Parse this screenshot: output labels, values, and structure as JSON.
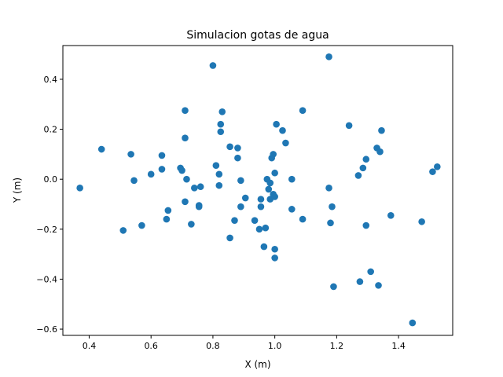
{
  "chart_data": {
    "type": "scatter",
    "title": "Simulacion gotas de agua",
    "xlabel": "X (m)",
    "ylabel": "Y (m)",
    "xlim": [
      0.315,
      1.575
    ],
    "ylim": [
      -0.625,
      0.535
    ],
    "xticks": [
      0.4,
      0.6,
      0.8,
      1.0,
      1.2,
      1.4
    ],
    "xtick_labels": [
      "0.4",
      "0.6",
      "0.8",
      "1.0",
      "1.2",
      "1.4"
    ],
    "yticks": [
      -0.6,
      -0.4,
      -0.2,
      0.0,
      0.2,
      0.4
    ],
    "ytick_labels": [
      "−0.6",
      "−0.4",
      "−0.2",
      "0.0",
      "0.2",
      "0.4"
    ],
    "grid": false,
    "marker_color": "#1f77b4",
    "points": [
      {
        "x": 0.37,
        "y": -0.035
      },
      {
        "x": 0.44,
        "y": 0.12
      },
      {
        "x": 0.51,
        "y": -0.205
      },
      {
        "x": 0.535,
        "y": 0.1
      },
      {
        "x": 0.545,
        "y": -0.005
      },
      {
        "x": 0.57,
        "y": -0.185
      },
      {
        "x": 0.6,
        "y": 0.02
      },
      {
        "x": 0.635,
        "y": 0.095
      },
      {
        "x": 0.635,
        "y": 0.04
      },
      {
        "x": 0.65,
        "y": -0.16
      },
      {
        "x": 0.655,
        "y": -0.125
      },
      {
        "x": 0.695,
        "y": 0.045
      },
      {
        "x": 0.7,
        "y": 0.035
      },
      {
        "x": 0.71,
        "y": 0.275
      },
      {
        "x": 0.71,
        "y": 0.165
      },
      {
        "x": 0.71,
        "y": -0.09
      },
      {
        "x": 0.715,
        "y": 0.0
      },
      {
        "x": 0.73,
        "y": -0.18
      },
      {
        "x": 0.74,
        "y": -0.035
      },
      {
        "x": 0.755,
        "y": -0.105
      },
      {
        "x": 0.755,
        "y": -0.11
      },
      {
        "x": 0.76,
        "y": -0.03
      },
      {
        "x": 0.8,
        "y": 0.455
      },
      {
        "x": 0.81,
        "y": 0.055
      },
      {
        "x": 0.82,
        "y": 0.02
      },
      {
        "x": 0.82,
        "y": -0.025
      },
      {
        "x": 0.825,
        "y": 0.22
      },
      {
        "x": 0.825,
        "y": 0.19
      },
      {
        "x": 0.83,
        "y": 0.27
      },
      {
        "x": 0.855,
        "y": 0.13
      },
      {
        "x": 0.855,
        "y": -0.235
      },
      {
        "x": 0.87,
        "y": -0.165
      },
      {
        "x": 0.88,
        "y": 0.125
      },
      {
        "x": 0.88,
        "y": 0.085
      },
      {
        "x": 0.89,
        "y": -0.005
      },
      {
        "x": 0.89,
        "y": -0.11
      },
      {
        "x": 0.905,
        "y": -0.075
      },
      {
        "x": 0.935,
        "y": -0.165
      },
      {
        "x": 0.95,
        "y": -0.2
      },
      {
        "x": 0.955,
        "y": -0.11
      },
      {
        "x": 0.955,
        "y": -0.08
      },
      {
        "x": 0.965,
        "y": -0.27
      },
      {
        "x": 0.97,
        "y": -0.195
      },
      {
        "x": 0.975,
        "y": 0.0
      },
      {
        "x": 0.98,
        "y": -0.04
      },
      {
        "x": 0.985,
        "y": -0.08
      },
      {
        "x": 0.985,
        "y": -0.015
      },
      {
        "x": 0.99,
        "y": 0.085
      },
      {
        "x": 0.995,
        "y": 0.1
      },
      {
        "x": 0.995,
        "y": -0.06
      },
      {
        "x": 1.0,
        "y": -0.28
      },
      {
        "x": 1.0,
        "y": -0.315
      },
      {
        "x": 1.0,
        "y": -0.07
      },
      {
        "x": 1.0,
        "y": 0.025
      },
      {
        "x": 1.005,
        "y": 0.22
      },
      {
        "x": 1.025,
        "y": 0.195
      },
      {
        "x": 1.035,
        "y": 0.145
      },
      {
        "x": 1.055,
        "y": 0.0
      },
      {
        "x": 1.055,
        "y": -0.12
      },
      {
        "x": 1.09,
        "y": 0.275
      },
      {
        "x": 1.09,
        "y": -0.16
      },
      {
        "x": 1.175,
        "y": 0.49
      },
      {
        "x": 1.175,
        "y": -0.035
      },
      {
        "x": 1.18,
        "y": -0.175
      },
      {
        "x": 1.185,
        "y": -0.11
      },
      {
        "x": 1.19,
        "y": -0.43
      },
      {
        "x": 1.24,
        "y": 0.215
      },
      {
        "x": 1.27,
        "y": 0.015
      },
      {
        "x": 1.275,
        "y": -0.41
      },
      {
        "x": 1.285,
        "y": 0.045
      },
      {
        "x": 1.295,
        "y": 0.08
      },
      {
        "x": 1.295,
        "y": -0.185
      },
      {
        "x": 1.31,
        "y": -0.37
      },
      {
        "x": 1.33,
        "y": 0.125
      },
      {
        "x": 1.335,
        "y": -0.425
      },
      {
        "x": 1.34,
        "y": 0.11
      },
      {
        "x": 1.345,
        "y": 0.195
      },
      {
        "x": 1.375,
        "y": -0.145
      },
      {
        "x": 1.445,
        "y": -0.575
      },
      {
        "x": 1.475,
        "y": -0.17
      },
      {
        "x": 1.51,
        "y": 0.03
      },
      {
        "x": 1.525,
        "y": 0.05
      }
    ]
  }
}
